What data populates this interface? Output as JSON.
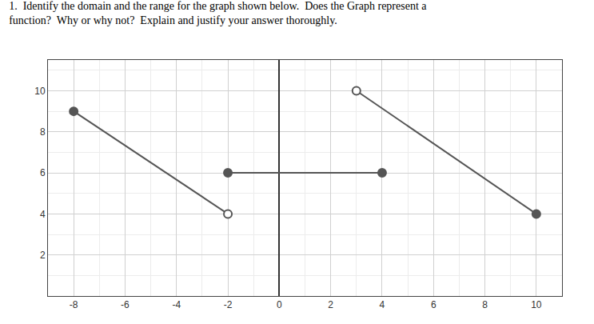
{
  "chart_data": {
    "type": "line",
    "title": "1.  Identify the domain and the range for the graph shown below.  Does the Graph represent a",
    "subtitle": "function?  Why or why not?  Explain and justify your answer thoroughly.",
    "color": "#555555",
    "grid": true,
    "xlim": [
      -9,
      11
    ],
    "ylim": [
      0,
      11.5
    ],
    "xticks": [
      -8,
      -6,
      -4,
      -2,
      0,
      2,
      4,
      6,
      8,
      10
    ],
    "yticks": [
      2,
      4,
      6,
      8,
      10
    ],
    "series": [
      {
        "type": "line",
        "x": [
          -8,
          -2
        ],
        "values": [
          9,
          4
        ]
      },
      {
        "type": "line",
        "x": [
          -2,
          4
        ],
        "values": [
          6,
          6
        ]
      },
      {
        "type": "line",
        "x": [
          3,
          10
        ],
        "values": [
          10,
          4
        ]
      },
      {
        "type": "scatter",
        "marker": "filled",
        "x": [
          -8,
          -2,
          4,
          10
        ],
        "values": [
          9,
          6,
          6,
          4
        ]
      },
      {
        "type": "scatter",
        "marker": "open",
        "x": [
          -2,
          3
        ],
        "values": [
          4,
          10
        ]
      }
    ]
  }
}
